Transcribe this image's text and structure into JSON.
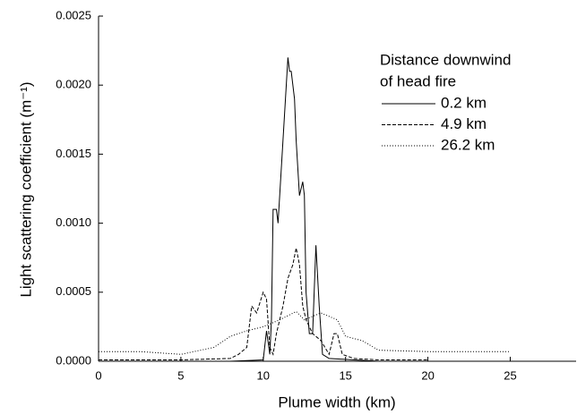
{
  "chart_data": {
    "type": "line",
    "xlabel": "Plume width (km)",
    "ylabel": "Light scattering coefficient (m⁻¹)",
    "legend_title": [
      "Distance downwind",
      "of head fire"
    ],
    "legend": "upper right",
    "xlim": [
      0,
      29
    ],
    "ylim": [
      0,
      0.0025
    ],
    "xticks": [
      0,
      5,
      10,
      15,
      20,
      25
    ],
    "yticks": [
      {
        "value": 0,
        "label": "0.0000"
      },
      {
        "value": 0.0005,
        "label": "0.0005"
      },
      {
        "value": 0.001,
        "label": "0.0010"
      },
      {
        "value": 0.0015,
        "label": "0.0015"
      },
      {
        "value": 0.002,
        "label": "0.0020"
      },
      {
        "value": 0.0025,
        "label": "0.0025"
      }
    ],
    "series": [
      {
        "name": "0.2 km",
        "color": "#000000",
        "dash": "solid",
        "x": [
          8,
          10,
          10.2,
          10.4,
          10.5,
          10.6,
          10.8,
          10.9,
          11,
          11.2,
          11.4,
          11.5,
          11.6,
          11.7,
          11.9,
          12,
          12.2,
          12.4,
          12.5,
          12.6,
          12.8,
          13,
          13.2,
          13.4,
          13.6,
          14,
          15.5,
          17
        ],
        "values": [
          0,
          1e-05,
          0.00022,
          5e-05,
          0.0003,
          0.0011,
          0.0011,
          0.001,
          0.0012,
          0.0016,
          0.002,
          0.0022,
          0.0021,
          0.0021,
          0.0019,
          0.0016,
          0.0012,
          0.0013,
          0.0012,
          0.0005,
          0.0002,
          0.0002,
          0.00084,
          0.0004,
          5e-05,
          2e-05,
          1e-05,
          0
        ]
      },
      {
        "name": "4.9 km",
        "color": "#000000",
        "dash": "dashed",
        "x": [
          0,
          5,
          8,
          8.5,
          9,
          9.3,
          9.6,
          10,
          10.2,
          10.4,
          10.6,
          10.8,
          11,
          11.2,
          11.5,
          11.8,
          12,
          12.2,
          12.4,
          12.6,
          13,
          13.5,
          14,
          14.3,
          14.5,
          14.8,
          15.5,
          17,
          20
        ],
        "values": [
          1e-05,
          1e-05,
          2e-05,
          5e-05,
          0.0001,
          0.0004,
          0.00035,
          0.0005,
          0.00045,
          0.0001,
          5e-05,
          0.0002,
          0.0003,
          0.0004,
          0.0006,
          0.0007,
          0.00082,
          0.0007,
          0.0004,
          0.0003,
          0.0002,
          0.00015,
          5e-05,
          0.0002,
          0.0002,
          5e-05,
          2e-05,
          1e-05,
          1e-05
        ]
      },
      {
        "name": "26.2 km",
        "color": "#000000",
        "dash": "dotted",
        "x": [
          0,
          2.5,
          5,
          7,
          8,
          9,
          10,
          11,
          12,
          12.5,
          13.5,
          14.5,
          15,
          16,
          17,
          20,
          25
        ],
        "values": [
          7e-05,
          7e-05,
          5e-05,
          0.0001,
          0.00018,
          0.00022,
          0.00025,
          0.0003,
          0.00036,
          0.0003,
          0.00035,
          0.0003,
          0.00018,
          0.00015,
          8e-05,
          7e-05,
          7e-05
        ]
      }
    ]
  }
}
